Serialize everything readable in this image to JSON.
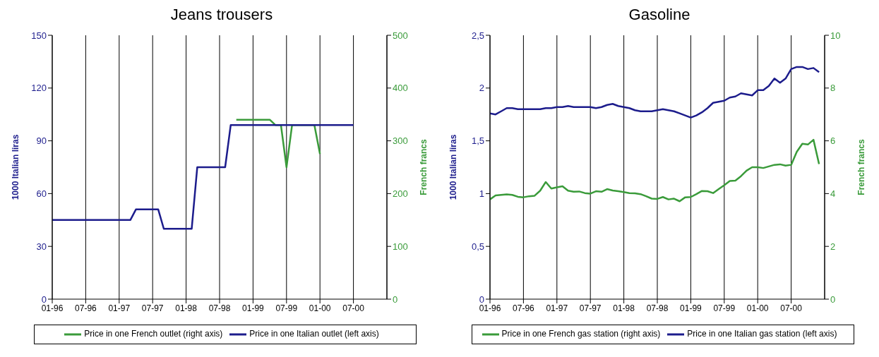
{
  "chart_data": [
    {
      "type": "line",
      "title": "Jeans trousers",
      "ylabel": "1000 Italian liras",
      "y2label": "French francs",
      "x": [
        "1996-01",
        "1996-02",
        "1996-03",
        "1996-04",
        "1996-05",
        "1996-06",
        "1996-07",
        "1996-08",
        "1996-09",
        "1996-10",
        "1996-11",
        "1996-12",
        "1997-01",
        "1997-02",
        "1997-03",
        "1997-04",
        "1997-05",
        "1997-06",
        "1997-07",
        "1997-08",
        "1997-09",
        "1997-10",
        "1997-11",
        "1997-12",
        "1998-01",
        "1998-02",
        "1998-03",
        "1998-04",
        "1998-05",
        "1998-06",
        "1998-07",
        "1998-08",
        "1998-09",
        "1998-10",
        "1998-11",
        "1998-12",
        "1999-01",
        "1999-02",
        "1999-03",
        "1999-04",
        "1999-05",
        "1999-06",
        "1999-07",
        "1999-08",
        "1999-09",
        "1999-10",
        "1999-11",
        "1999-12",
        "2000-01",
        "2000-02",
        "2000-03",
        "2000-04",
        "2000-05",
        "2000-06",
        "2000-07"
      ],
      "series": [
        {
          "name": "Price in one Italian outlet (left axis)",
          "color": "#1c1c8c",
          "values": [
            45,
            45,
            45,
            45,
            45,
            45,
            45,
            45,
            45,
            45,
            45,
            45,
            45,
            45,
            45,
            51,
            51,
            51,
            51,
            51,
            40,
            40,
            40,
            40,
            40,
            40,
            75,
            75,
            75,
            75,
            75,
            75,
            99,
            99,
            99,
            99,
            99,
            99,
            99,
            99,
            99,
            99,
            99,
            99,
            99,
            99,
            99,
            99,
            99,
            99,
            99,
            99,
            99,
            99,
            99
          ]
        },
        {
          "name": "Price in one French outlet (right axis)",
          "color": "#3a9b3a",
          "axis": "y2",
          "values": [
            null,
            null,
            null,
            null,
            null,
            null,
            null,
            null,
            null,
            null,
            null,
            null,
            null,
            null,
            null,
            null,
            null,
            null,
            null,
            null,
            null,
            null,
            null,
            null,
            null,
            null,
            null,
            null,
            null,
            null,
            null,
            null,
            null,
            340,
            340,
            340,
            340,
            340,
            340,
            340,
            330,
            330,
            250,
            330,
            330,
            330,
            330,
            330,
            275,
            null,
            null,
            null,
            null,
            null,
            null
          ]
        }
      ],
      "xlim": [
        "1996-01",
        "2001-01"
      ],
      "xticks": [
        {
          "value": "1996-01",
          "label": "01-96"
        },
        {
          "value": "1996-07",
          "label": "07-96"
        },
        {
          "value": "1997-01",
          "label": "01-97"
        },
        {
          "value": "1997-07",
          "label": "07-97"
        },
        {
          "value": "1998-01",
          "label": "01-98"
        },
        {
          "value": "1998-07",
          "label": "07-98"
        },
        {
          "value": "1999-01",
          "label": "01-99"
        },
        {
          "value": "1999-07",
          "label": "07-99"
        },
        {
          "value": "2000-01",
          "label": "01-00"
        },
        {
          "value": "2000-07",
          "label": "07-00"
        }
      ],
      "ylim": [
        0,
        150
      ],
      "yticks": [
        0,
        30,
        60,
        90,
        120,
        150
      ],
      "y2lim": [
        0,
        500
      ],
      "y2ticks": [
        0,
        100,
        200,
        300,
        400,
        500
      ],
      "grid": "x",
      "legend": "bottom"
    },
    {
      "type": "line",
      "title": "Gasoline",
      "ylabel": "1000 Italian liras",
      "y2label": "French francs",
      "x": [
        "1996-01",
        "1996-02",
        "1996-03",
        "1996-04",
        "1996-05",
        "1996-06",
        "1996-07",
        "1996-08",
        "1996-09",
        "1996-10",
        "1996-11",
        "1996-12",
        "1997-01",
        "1997-02",
        "1997-03",
        "1997-04",
        "1997-05",
        "1997-06",
        "1997-07",
        "1997-08",
        "1997-09",
        "1997-10",
        "1997-11",
        "1997-12",
        "1998-01",
        "1998-02",
        "1998-03",
        "1998-04",
        "1998-05",
        "1998-06",
        "1998-07",
        "1998-08",
        "1998-09",
        "1998-10",
        "1998-11",
        "1998-12",
        "1999-01",
        "1999-02",
        "1999-03",
        "1999-04",
        "1999-05",
        "1999-06",
        "1999-07",
        "1999-08",
        "1999-09",
        "1999-10",
        "1999-11",
        "1999-12",
        "2000-01",
        "2000-02",
        "2000-03",
        "2000-04",
        "2000-05",
        "2000-06",
        "2000-07",
        "2000-08",
        "2000-09",
        "2000-10",
        "2000-11",
        "2000-12"
      ],
      "series": [
        {
          "name": "Price in one Italian gas station (left axis)",
          "color": "#1c1c8c",
          "values": [
            1.76,
            1.75,
            1.78,
            1.81,
            1.81,
            1.8,
            1.8,
            1.8,
            1.8,
            1.8,
            1.81,
            1.81,
            1.82,
            1.82,
            1.83,
            1.82,
            1.82,
            1.82,
            1.82,
            1.81,
            1.82,
            1.84,
            1.85,
            1.83,
            1.82,
            1.81,
            1.79,
            1.78,
            1.78,
            1.78,
            1.79,
            1.8,
            1.79,
            1.78,
            1.76,
            1.74,
            1.72,
            1.74,
            1.77,
            1.81,
            1.86,
            1.87,
            1.88,
            1.91,
            1.92,
            1.95,
            1.94,
            1.93,
            1.98,
            1.98,
            2.02,
            2.09,
            2.05,
            2.09,
            2.18,
            2.2,
            2.2,
            2.18,
            2.19,
            2.15
          ]
        },
        {
          "name": "Price in one French  gas station (right axis)",
          "color": "#3a9b3a",
          "axis": "y2",
          "values": [
            3.78,
            3.93,
            3.95,
            3.97,
            3.95,
            3.88,
            3.86,
            3.9,
            3.92,
            4.11,
            4.44,
            4.19,
            4.24,
            4.28,
            4.11,
            4.07,
            4.08,
            4.02,
            4.0,
            4.09,
            4.07,
            4.17,
            4.12,
            4.09,
            4.06,
            4.02,
            4.01,
            3.98,
            3.9,
            3.81,
            3.8,
            3.87,
            3.78,
            3.81,
            3.71,
            3.86,
            3.87,
            3.98,
            4.1,
            4.09,
            4.02,
            4.17,
            4.32,
            4.48,
            4.49,
            4.66,
            4.87,
            5.0,
            5.0,
            4.97,
            5.03,
            5.09,
            5.11,
            5.06,
            5.09,
            5.58,
            5.89,
            5.86,
            6.04,
            5.12
          ]
        }
      ],
      "xlim": [
        "1996-01",
        "2001-01"
      ],
      "xticks": [
        {
          "value": "1996-01",
          "label": "01-96"
        },
        {
          "value": "1996-07",
          "label": "07-96"
        },
        {
          "value": "1997-01",
          "label": "01-97"
        },
        {
          "value": "1997-07",
          "label": "07-97"
        },
        {
          "value": "1998-01",
          "label": "01-98"
        },
        {
          "value": "1998-07",
          "label": "07-98"
        },
        {
          "value": "1999-01",
          "label": "01-99"
        },
        {
          "value": "1999-07",
          "label": "07-99"
        },
        {
          "value": "2000-01",
          "label": "01-00"
        },
        {
          "value": "2000-07",
          "label": "07-00"
        }
      ],
      "ylim": [
        0,
        2.5
      ],
      "yticks": [
        0,
        {
          "value": 0.5,
          "label": "0,5"
        },
        1,
        {
          "value": 1.5,
          "label": "1,5"
        },
        2,
        {
          "value": 2.5,
          "label": "2,5"
        }
      ],
      "y2lim": [
        0,
        10
      ],
      "y2ticks": [
        0,
        2,
        4,
        6,
        8,
        10
      ],
      "grid": "x",
      "legend": "bottom"
    }
  ]
}
